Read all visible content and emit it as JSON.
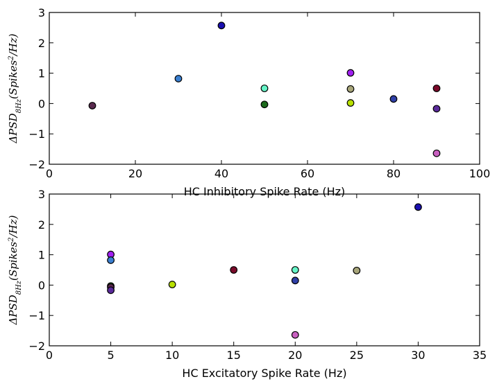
{
  "chart_data": [
    {
      "type": "scatter",
      "xlabel": "HC Inhibitory Spike Rate (Hz)",
      "ylabel": "ΔPSD8Hz(Spikes²/Hz)",
      "ylabel_parts": {
        "prefix": "ΔPSD",
        "sub": "8Hz",
        "mid": "(Spikes",
        "sup": "2",
        "suffix": "/Hz)"
      },
      "xlim": [
        0,
        100
      ],
      "ylim": [
        -2,
        3
      ],
      "xticks": [
        "0",
        "20",
        "40",
        "60",
        "80",
        "100"
      ],
      "yticks": [
        "−2",
        "−1",
        "0",
        "1",
        "2",
        "3"
      ],
      "grid": false,
      "points": [
        {
          "x": 10,
          "y": -0.07,
          "color": "#5a2a4e"
        },
        {
          "x": 30,
          "y": 0.82,
          "color": "#3a7fd0"
        },
        {
          "x": 40,
          "y": 2.57,
          "color": "#1a0fb0"
        },
        {
          "x": 50,
          "y": 0.5,
          "color": "#66f5c8"
        },
        {
          "x": 50,
          "y": -0.03,
          "color": "#1d6b1d"
        },
        {
          "x": 70,
          "y": 1.01,
          "color": "#a020f0"
        },
        {
          "x": 70,
          "y": 0.48,
          "color": "#a8a67a"
        },
        {
          "x": 70,
          "y": 0.02,
          "color": "#b8e000"
        },
        {
          "x": 80,
          "y": 0.15,
          "color": "#3040a8"
        },
        {
          "x": 90,
          "y": 0.5,
          "color": "#7a0a2a"
        },
        {
          "x": 90,
          "y": -0.17,
          "color": "#5a2a9a"
        },
        {
          "x": 90,
          "y": -1.64,
          "color": "#c860c0"
        }
      ]
    },
    {
      "type": "scatter",
      "xlabel": "HC Excitatory Spike Rate (Hz)",
      "ylabel": "ΔPSD8Hz(Spikes²/Hz)",
      "ylabel_parts": {
        "prefix": "ΔPSD",
        "sub": "8Hz",
        "mid": "(Spikes",
        "sup": "2",
        "suffix": "/Hz)"
      },
      "xlim": [
        0,
        35
      ],
      "ylim": [
        -2,
        3
      ],
      "xticks": [
        "0",
        "5",
        "10",
        "15",
        "20",
        "25",
        "30",
        "35"
      ],
      "yticks": [
        "−2",
        "−1",
        "0",
        "1",
        "2",
        "3"
      ],
      "grid": false,
      "points": [
        {
          "x": 5,
          "y": 1.01,
          "color": "#a020f0"
        },
        {
          "x": 5,
          "y": 0.82,
          "color": "#3a7fd0"
        },
        {
          "x": 5,
          "y": -0.03,
          "color": "#1d6b1d"
        },
        {
          "x": 5,
          "y": -0.07,
          "color": "#5a2a4e"
        },
        {
          "x": 5,
          "y": -0.17,
          "color": "#5a2a9a"
        },
        {
          "x": 10,
          "y": 0.02,
          "color": "#b8e000"
        },
        {
          "x": 15,
          "y": 0.5,
          "color": "#7a0a2a"
        },
        {
          "x": 20,
          "y": 0.5,
          "color": "#66f5c8"
        },
        {
          "x": 20,
          "y": 0.15,
          "color": "#3040a8"
        },
        {
          "x": 20,
          "y": -1.64,
          "color": "#c860c0"
        },
        {
          "x": 25,
          "y": 0.48,
          "color": "#a8a67a"
        },
        {
          "x": 30,
          "y": 2.57,
          "color": "#1a0fb0"
        }
      ]
    }
  ]
}
